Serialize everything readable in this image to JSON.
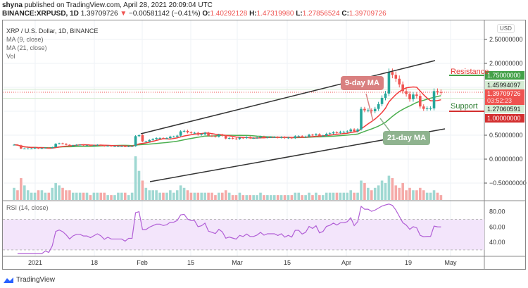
{
  "header": {
    "author": "shyna",
    "published": "published on TradingView.com, April 28, 2021 20:09:04 UTC",
    "symbol": "BINANCE:XRPUSD, 1D",
    "last": "1.39709726",
    "arrow": "▼",
    "change": "−0.00581142 (−0.41%)",
    "o_label": "O:",
    "open": "1.40292128",
    "h_label": "H:",
    "high": "1.47319980",
    "l_label": "L:",
    "low": "1.27856524",
    "c_label": "C:",
    "close": "1.39709726"
  },
  "legend": {
    "title": "XRP / U.S. Dollar, 1D, BINANCE",
    "ma9": "MA (9, close)",
    "ma21": "MA (21, close)",
    "vol": "Vol",
    "rsi": "RSI (14, close)"
  },
  "axis": {
    "currency": "USD",
    "price_ticks": [
      "2.50000000",
      "2.00000000",
      "0.50000000",
      "0.00000000",
      "−0.50000000"
    ],
    "rsi_ticks": [
      "80.00",
      "60.00",
      "40.00"
    ],
    "time_ticks": [
      "2021",
      "18",
      "Feb",
      "15",
      "Mar",
      "15",
      "Apr",
      "19",
      "May"
    ]
  },
  "price_labels": {
    "resistance": "1.75000000",
    "upper": "1.45994097",
    "last": "1.39709726",
    "countdown": "03:52:23",
    "lower": "1.27060591",
    "support": "1.00000000"
  },
  "annotations": {
    "resistance": "Resistance",
    "support": "Support",
    "ma9": "9-day MA",
    "ma21": "21-day MA"
  },
  "branding": "TradingView",
  "colors": {
    "up": "#26a69a",
    "down": "#ef5350",
    "ma9": "#f23b3b",
    "ma21": "#4caf50",
    "rsi": "#b15ed6"
  },
  "chart_data": {
    "type": "candlestick",
    "title": "XRP / U.S. Dollar, 1D, BINANCE",
    "first_date": "2020-12-26",
    "last_date": "2021-04-28",
    "ylim": [
      -0.6,
      2.7
    ],
    "rsi_bands": [
      30,
      70
    ],
    "close": [
      0.3,
      0.29,
      0.22,
      0.22,
      0.22,
      0.22,
      0.24,
      0.22,
      0.23,
      0.24,
      0.23,
      0.25,
      0.32,
      0.33,
      0.32,
      0.3,
      0.27,
      0.29,
      0.3,
      0.3,
      0.29,
      0.29,
      0.28,
      0.29,
      0.3,
      0.29,
      0.27,
      0.28,
      0.27,
      0.27,
      0.27,
      0.27,
      0.26,
      0.27,
      0.27,
      0.48,
      0.5,
      0.37,
      0.37,
      0.4,
      0.42,
      0.44,
      0.44,
      0.43,
      0.44,
      0.47,
      0.47,
      0.49,
      0.58,
      0.59,
      0.56,
      0.55,
      0.55,
      0.51,
      0.52,
      0.55,
      0.49,
      0.48,
      0.47,
      0.51,
      0.49,
      0.43,
      0.44,
      0.43,
      0.42,
      0.45,
      0.44,
      0.46,
      0.44,
      0.44,
      0.45,
      0.47,
      0.45,
      0.46,
      0.46,
      0.46,
      0.45,
      0.46,
      0.44,
      0.45,
      0.44,
      0.48,
      0.48,
      0.46,
      0.47,
      0.51,
      0.5,
      0.52,
      0.48,
      0.49,
      0.53,
      0.54,
      0.56,
      0.55,
      0.57,
      0.57,
      0.58,
      0.62,
      0.58,
      0.62,
      1.05,
      1.02,
      1.02,
      1.0,
      1.05,
      1.15,
      1.28,
      1.37,
      1.82,
      1.76,
      1.68,
      1.56,
      1.42,
      1.36,
      1.25,
      1.35,
      1.32,
      1.1,
      1.05,
      1.06,
      1.06,
      1.42,
      1.4,
      1.397
    ],
    "volume": [
      5,
      4,
      9,
      6,
      4,
      3,
      3,
      4,
      4,
      3,
      3,
      5,
      7,
      6,
      5,
      4,
      4,
      3,
      3,
      3,
      3,
      3,
      2,
      3,
      3,
      3,
      3,
      2,
      2,
      2,
      3,
      3,
      3,
      2,
      3,
      18,
      12,
      8,
      5,
      4,
      4,
      4,
      3,
      3,
      3,
      4,
      3,
      4,
      6,
      5,
      4,
      3,
      3,
      3,
      3,
      3,
      3,
      3,
      2,
      3,
      3,
      4,
      3,
      2,
      2,
      3,
      2,
      2,
      2,
      2,
      2,
      3,
      2,
      2,
      2,
      2,
      2,
      2,
      2,
      2,
      2,
      3,
      3,
      2,
      2,
      3,
      2,
      3,
      2,
      2,
      3,
      3,
      3,
      3,
      3,
      3,
      3,
      4,
      3,
      3,
      8,
      7,
      5,
      4,
      5,
      6,
      8,
      7,
      10,
      9,
      6,
      5,
      7,
      4,
      5,
      4,
      4,
      5,
      4,
      3,
      3,
      4,
      3,
      2
    ]
  }
}
